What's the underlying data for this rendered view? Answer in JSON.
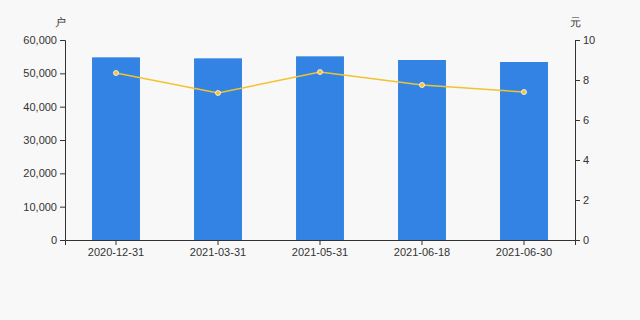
{
  "chart_data": {
    "type": "bar",
    "ylabel": "户",
    "y2label": "元",
    "categories": [
      "2020-12-31",
      "2021-03-31",
      "2021-05-31",
      "2021-06-18",
      "2021-06-30"
    ],
    "series": [
      {
        "type": "bar",
        "color": "#3383e4",
        "values": [
          54800,
          54500,
          55100,
          54000,
          53400
        ]
      },
      {
        "type": "line",
        "axis": "y2",
        "color": "#f2c230",
        "marker": "circle",
        "values": [
          8.35,
          7.35,
          8.4,
          7.75,
          7.4
        ]
      }
    ],
    "ylim": [
      0,
      60000
    ],
    "yticks": [
      0,
      {
        "value": 10000,
        "label": "10,000"
      },
      {
        "value": 20000,
        "label": "20,000"
      },
      {
        "value": 30000,
        "label": "30,000"
      },
      {
        "value": 40000,
        "label": "40,000"
      },
      {
        "value": 50000,
        "label": "50,000"
      },
      {
        "value": 60000,
        "label": "60,000"
      }
    ],
    "y2lim": [
      0,
      10
    ],
    "y2ticks": [
      0,
      2,
      4,
      6,
      8,
      10
    ]
  }
}
